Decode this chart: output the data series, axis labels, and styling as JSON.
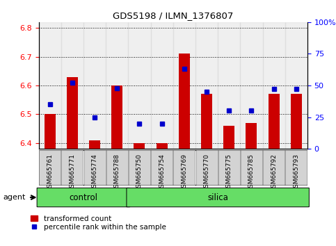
{
  "title": "GDS5198 / ILMN_1376807",
  "samples": [
    "GSM665761",
    "GSM665771",
    "GSM665774",
    "GSM665788",
    "GSM665750",
    "GSM665754",
    "GSM665769",
    "GSM665770",
    "GSM665775",
    "GSM665785",
    "GSM665792",
    "GSM665793"
  ],
  "transformed_count": [
    6.5,
    6.63,
    6.41,
    6.6,
    6.4,
    6.4,
    6.71,
    6.57,
    6.46,
    6.47,
    6.57,
    6.57
  ],
  "percentile_rank": [
    35,
    52,
    25,
    48,
    20,
    20,
    63,
    45,
    30,
    30,
    47,
    47
  ],
  "ylim_left": [
    6.38,
    6.82
  ],
  "ylim_right": [
    0,
    100
  ],
  "yticks_left": [
    6.4,
    6.5,
    6.6,
    6.7,
    6.8
  ],
  "yticks_right": [
    0,
    25,
    50,
    75,
    100
  ],
  "n_control": 4,
  "n_silica": 8,
  "bar_color": "#cc0000",
  "dot_color": "#0000cc",
  "bar_bottom": 6.38,
  "cell_color": "#d3d3d3",
  "green_color": "#66dd66",
  "agent_label": "agent",
  "control_label": "control",
  "silica_label": "silica",
  "legend_bar_label": "transformed count",
  "legend_dot_label": "percentile rank within the sample"
}
